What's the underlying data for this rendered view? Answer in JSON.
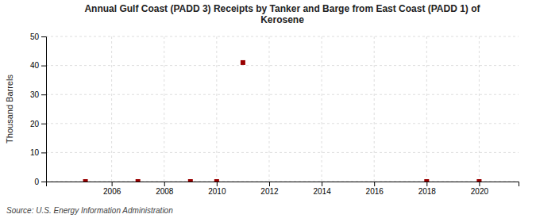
{
  "chart_data": {
    "type": "scatter",
    "title": "Annual Gulf Coast (PADD 3) Receipts by Tanker and Barge from East Coast (PADD 1) of\nKerosene",
    "y_label": "Thousand Barrels",
    "source": "Source: U.S. Energy Information Administration",
    "x": [
      2005,
      2007,
      2009,
      2010,
      2011,
      2018,
      2020
    ],
    "values": [
      0,
      0,
      0,
      0,
      41,
      0,
      0
    ],
    "color": "#990000",
    "marker": "square",
    "xlim": [
      2003.5,
      2021.5
    ],
    "xticks": [
      2006,
      2008,
      2010,
      2012,
      2014,
      2016,
      2018,
      2020
    ],
    "ylim": [
      0,
      50
    ],
    "yticks": [
      0,
      10,
      20,
      30,
      40,
      50
    ],
    "grid": true
  }
}
